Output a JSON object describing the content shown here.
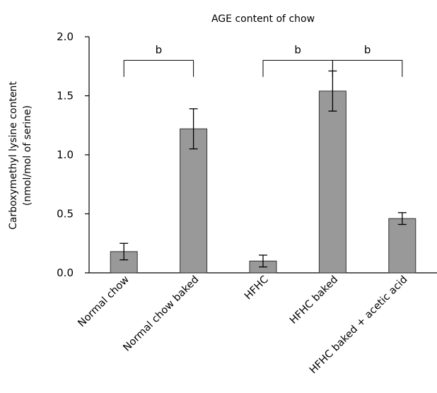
{
  "chart_data": {
    "type": "bar",
    "title": "AGE content of chow",
    "ylabel_lines": [
      "Carboxymethyl lysine content",
      "(nmol/mol of serine)"
    ],
    "xlabel": "",
    "ylim": [
      0,
      2.0
    ],
    "yticks": [
      0.0,
      0.5,
      1.0,
      1.5,
      2.0
    ],
    "ytick_labels": [
      "0.0",
      "0.5",
      "1.0",
      "1.5",
      "2.0"
    ],
    "categories": [
      "Normal chow",
      "Normal chow baked",
      "HFHC",
      "HFHC baked",
      "HFHC baked + acetic acid"
    ],
    "values": [
      0.18,
      1.22,
      0.1,
      1.54,
      0.46
    ],
    "errors": [
      0.07,
      0.17,
      0.05,
      0.17,
      0.05
    ],
    "bar_color": "#999999",
    "grid": false,
    "significance": [
      {
        "from": 0,
        "to": 1,
        "label": "b"
      },
      {
        "from": 2,
        "to": 3,
        "label": "b"
      },
      {
        "from": 3,
        "to": 4,
        "label": "b"
      }
    ]
  }
}
